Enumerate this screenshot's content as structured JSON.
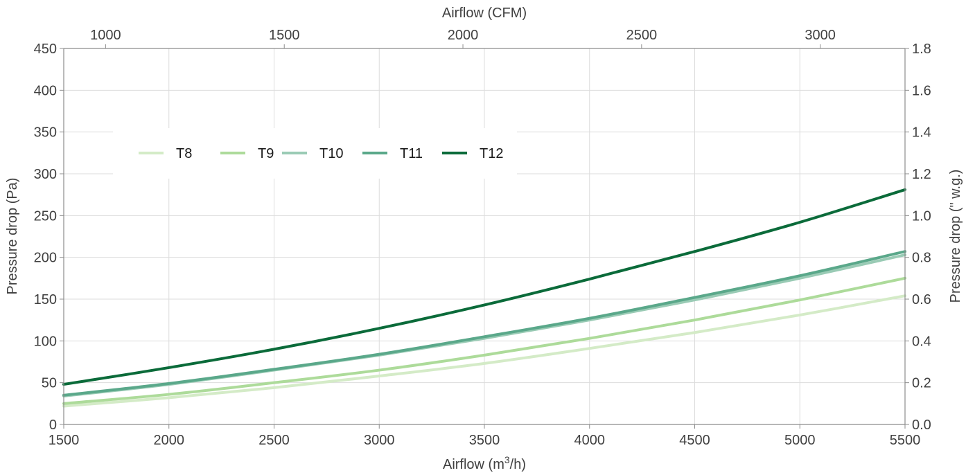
{
  "chart_data": {
    "type": "line",
    "xlabel": "Airflow (m",
    "xlabel_sup": "3",
    "xlabel_tail": "/h)",
    "x2label": "Airflow (CFM)",
    "ylabel": "Pressure drop (Pa)",
    "y2label": "Pressure drop (\" w.g.)",
    "xlim": [
      1500,
      5500
    ],
    "ylim": [
      0,
      450
    ],
    "x2lim": [
      882.9,
      3237.2
    ],
    "y2lim": [
      0,
      1.8
    ],
    "x_ticks": [
      "1500",
      "2000",
      "2500",
      "3000",
      "3500",
      "4000",
      "4500",
      "5000",
      "5500"
    ],
    "y_ticks": [
      "0",
      "50",
      "100",
      "150",
      "200",
      "250",
      "300",
      "350",
      "400",
      "450"
    ],
    "x2_ticks": [
      "1000",
      "1500",
      "2000",
      "2500",
      "3000"
    ],
    "y2_ticks": [
      "0.0",
      "0.2",
      "0.4",
      "0.6",
      "0.8",
      "1.0",
      "1.2",
      "1.4",
      "1.6",
      "1.8"
    ],
    "grid": true,
    "legend_position": "top-left",
    "series": [
      {
        "name": "T8",
        "color": "#d4ebc7",
        "x": [
          1500,
          2000,
          2500,
          3000,
          3500,
          4000,
          4500,
          5000,
          5500
        ],
        "values": [
          22,
          32,
          44,
          58,
          73,
          91,
          110,
          131,
          154
        ]
      },
      {
        "name": "T9",
        "color": "#addb9a",
        "x": [
          1500,
          2000,
          2500,
          3000,
          3500,
          4000,
          4500,
          5000,
          5500
        ],
        "values": [
          25,
          36,
          50,
          65,
          83,
          103,
          125,
          149,
          175
        ]
      },
      {
        "name": "T10",
        "color": "#9acbb5",
        "x": [
          1500,
          2000,
          2500,
          3000,
          3500,
          4000,
          4500,
          5000,
          5500
        ],
        "values": [
          34,
          48,
          65,
          83,
          103,
          125,
          149,
          175,
          203
        ]
      },
      {
        "name": "T11",
        "color": "#5aa88a",
        "x": [
          1500,
          2000,
          2500,
          3000,
          3500,
          4000,
          4500,
          5000,
          5500
        ],
        "values": [
          35,
          49,
          66,
          84,
          105,
          127,
          152,
          178,
          207
        ]
      },
      {
        "name": "T12",
        "color": "#0b6b3a",
        "x": [
          1500,
          2000,
          2500,
          3000,
          3500,
          4000,
          4500,
          5000,
          5500
        ],
        "values": [
          48,
          68,
          90,
          115,
          143,
          174,
          207,
          242,
          281
        ]
      }
    ]
  }
}
